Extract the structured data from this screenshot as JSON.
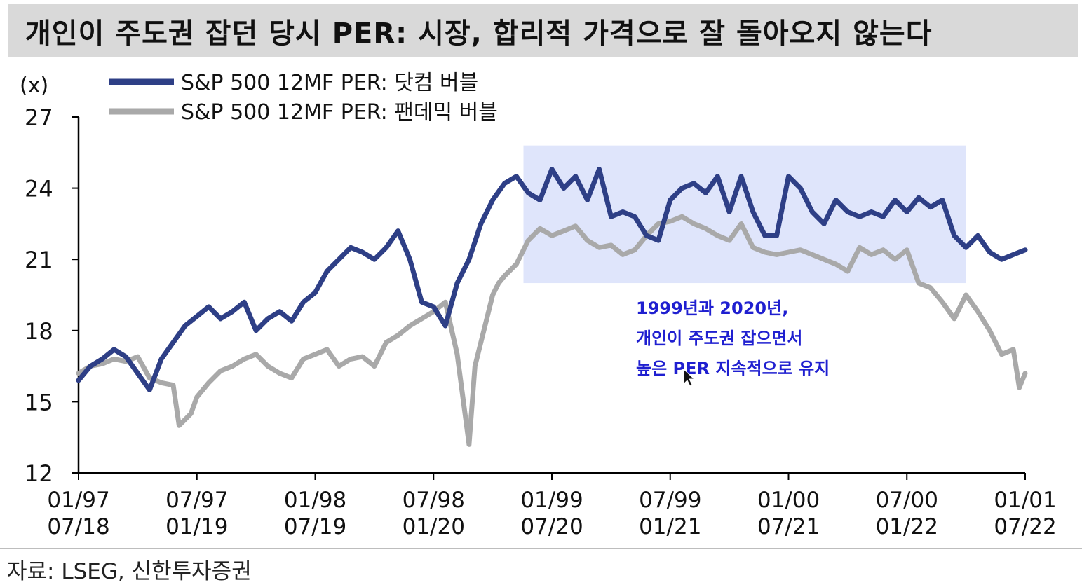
{
  "title": "개인이 주도권 잡던 당시 PER: 시장, 합리적 가격으로 잘 돌아오지 않는다",
  "source": "자료: LSEG, 신한투자증권",
  "colors": {
    "dotcom": "#2e3f86",
    "pandemic": "#a9a9a9",
    "highlight": "#dfe5fb",
    "annotation": "#1f1fd0"
  },
  "annotation": [
    "1999년과 2020년,",
    "개인이 주도권 잡으면서",
    "높은 PER 지속적으로 유지"
  ],
  "chart_data": {
    "type": "line",
    "ylabel": "(x)",
    "ylim": [
      12,
      27
    ],
    "yticks": [
      "27",
      "24",
      "21",
      "18",
      "15",
      "12"
    ],
    "xticks": [
      {
        "top": "01/97",
        "bottom": "07/18"
      },
      {
        "top": "07/97",
        "bottom": "01/19"
      },
      {
        "top": "01/98",
        "bottom": "07/19"
      },
      {
        "top": "07/98",
        "bottom": "01/20"
      },
      {
        "top": "01/99",
        "bottom": "07/20"
      },
      {
        "top": "07/99",
        "bottom": "01/21"
      },
      {
        "top": "01/00",
        "bottom": "07/21"
      },
      {
        "top": "07/00",
        "bottom": "01/22"
      },
      {
        "top": "01/01",
        "bottom": "07/22"
      }
    ],
    "highlight_x": [
      3.76,
      7.5
    ],
    "highlight_y": [
      20.0,
      25.8
    ],
    "series": [
      {
        "name": "S&P 500 12MF PER: 닷컴 버블",
        "x": [
          0,
          0.1,
          0.2,
          0.3,
          0.4,
          0.5,
          0.6,
          0.7,
          0.8,
          0.9,
          1.0,
          1.1,
          1.2,
          1.3,
          1.4,
          1.5,
          1.6,
          1.7,
          1.8,
          1.9,
          2.0,
          2.1,
          2.2,
          2.3,
          2.4,
          2.5,
          2.6,
          2.7,
          2.8,
          2.9,
          3.0,
          3.1,
          3.2,
          3.3,
          3.4,
          3.5,
          3.6,
          3.7,
          3.8,
          3.9,
          4.0,
          4.1,
          4.2,
          4.3,
          4.4,
          4.5,
          4.6,
          4.7,
          4.8,
          4.9,
          5.0,
          5.1,
          5.2,
          5.3,
          5.4,
          5.5,
          5.6,
          5.7,
          5.8,
          5.9,
          6.0,
          6.1,
          6.2,
          6.3,
          6.4,
          6.5,
          6.6,
          6.7,
          6.8,
          6.9,
          7.0,
          7.1,
          7.2,
          7.3,
          7.4,
          7.5,
          7.6,
          7.7,
          7.8,
          7.9,
          8.0
        ],
        "values": [
          15.9,
          16.5,
          16.8,
          17.2,
          16.9,
          16.2,
          15.5,
          16.8,
          17.5,
          18.2,
          18.6,
          19.0,
          18.5,
          18.8,
          19.2,
          18.0,
          18.5,
          18.8,
          18.4,
          19.2,
          19.6,
          20.5,
          21.0,
          21.5,
          21.3,
          21.0,
          21.5,
          22.2,
          21.0,
          19.2,
          19.0,
          18.2,
          20.0,
          21.0,
          22.5,
          23.5,
          24.2,
          24.5,
          23.8,
          23.5,
          24.8,
          24.0,
          24.5,
          23.5,
          24.8,
          22.8,
          23.0,
          22.8,
          22.0,
          21.8,
          23.5,
          24.0,
          24.2,
          23.8,
          24.5,
          23.0,
          24.5,
          23.0,
          22.0,
          22.0,
          24.5,
          24.0,
          23.0,
          22.5,
          23.5,
          23.0,
          22.8,
          23.0,
          22.8,
          23.5,
          23.0,
          23.6,
          23.2,
          23.5,
          22.0,
          21.5,
          22.0,
          21.3,
          21.0,
          21.2,
          21.4
        ]
      },
      {
        "name": "S&P 500 12MF PER: 팬데믹 버블",
        "x": [
          0,
          0.1,
          0.2,
          0.3,
          0.4,
          0.5,
          0.6,
          0.7,
          0.8,
          0.85,
          0.95,
          1.0,
          1.1,
          1.2,
          1.3,
          1.4,
          1.5,
          1.6,
          1.7,
          1.8,
          1.9,
          2.0,
          2.1,
          2.2,
          2.3,
          2.4,
          2.5,
          2.6,
          2.7,
          2.8,
          2.9,
          3.0,
          3.1,
          3.2,
          3.3,
          3.35,
          3.45,
          3.5,
          3.55,
          3.6,
          3.7,
          3.8,
          3.9,
          4.0,
          4.1,
          4.2,
          4.3,
          4.4,
          4.5,
          4.6,
          4.7,
          4.8,
          4.9,
          5.0,
          5.1,
          5.2,
          5.3,
          5.4,
          5.5,
          5.6,
          5.7,
          5.8,
          5.9,
          6.0,
          6.1,
          6.2,
          6.3,
          6.4,
          6.5,
          6.6,
          6.7,
          6.8,
          6.9,
          7.0,
          7.1,
          7.2,
          7.3,
          7.4,
          7.5,
          7.6,
          7.7,
          7.8,
          7.9,
          7.95,
          8.0
        ],
        "values": [
          16.2,
          16.5,
          16.6,
          16.8,
          16.7,
          16.9,
          16.0,
          15.8,
          15.7,
          14.0,
          14.5,
          15.2,
          15.8,
          16.3,
          16.5,
          16.8,
          17.0,
          16.5,
          16.2,
          16.0,
          16.8,
          17.0,
          17.2,
          16.5,
          16.8,
          16.9,
          16.5,
          17.5,
          17.8,
          18.2,
          18.5,
          18.8,
          19.2,
          17.0,
          13.2,
          16.5,
          18.5,
          19.5,
          20.0,
          20.3,
          20.8,
          21.8,
          22.3,
          22.0,
          22.2,
          22.4,
          21.8,
          21.5,
          21.6,
          21.2,
          21.4,
          22.0,
          22.5,
          22.6,
          22.8,
          22.5,
          22.3,
          22.0,
          21.8,
          22.5,
          21.5,
          21.3,
          21.2,
          21.3,
          21.4,
          21.2,
          21.0,
          20.8,
          20.5,
          21.5,
          21.2,
          21.4,
          21.0,
          21.4,
          20.0,
          19.8,
          19.2,
          18.5,
          19.5,
          18.8,
          18.0,
          17.0,
          17.2,
          15.6,
          16.2
        ]
      }
    ]
  }
}
